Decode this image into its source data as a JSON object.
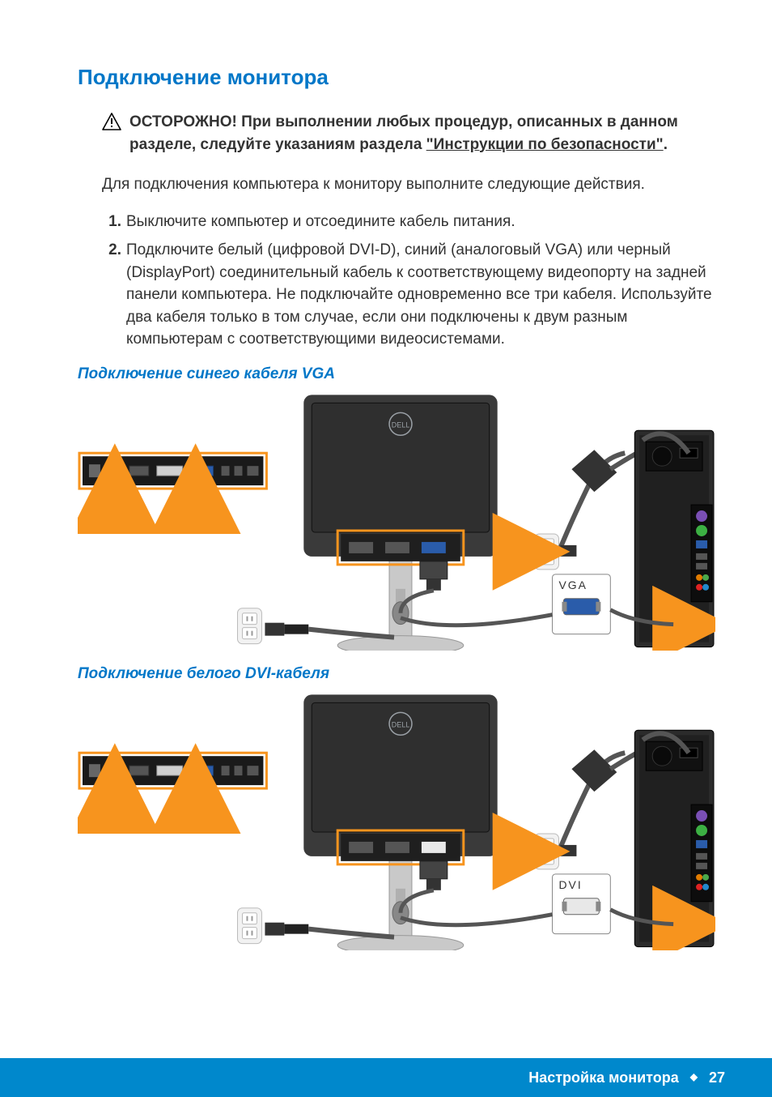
{
  "title": "Подключение монитора",
  "caution": {
    "lead": "ОСТОРОЖНО! При выполнении любых процедур, описанных в данном разделе, следуйте указаниям раздела ",
    "link": "\"Инструкции по безопасности\"",
    "tail": "."
  },
  "intro": "Для подключения компьютера к монитору выполните следующие действия.",
  "steps": [
    {
      "n": "1.",
      "t": "Выключите компьютер и отсоедините кабель питания."
    },
    {
      "n": "2.",
      "t": "Подключите белый (цифровой DVI-D), синий (аналоговый VGA) или черный (DisplayPort) соединительный кабель к соответствующему видеопорту на задней панели компьютера. Не подключайте одновременно все три кабеля. Используйте два кабеля только в том случае, если они подключены к двум разным компьютерам с соответствующими видеосистемами."
    }
  ],
  "sub_vga": "Подключение синего кабеля VGA",
  "sub_dvi": "Подключение белого DVI-кабеля",
  "footer_section": "Настройка монитора",
  "footer_page": "27",
  "colors": {
    "accent": "#0077c8",
    "footer_bg": "#0088cc",
    "highlight": "#f7941e",
    "monitor": "#3a3a3a",
    "tower": "#2b2b2b",
    "panel": "#1a1a1a",
    "outlet": "#d9d9d9",
    "cable": "#555555",
    "vga_blue": "#2a5caa",
    "dvi_white": "#e8e8e8",
    "port_green": "#3cb043",
    "port_purple": "#7a4fb5"
  },
  "diagrams": {
    "vga": {
      "label": "VGA",
      "connector_color": "#2a5caa"
    },
    "dvi": {
      "label": "DVI",
      "connector_color": "#e8e8e8"
    }
  }
}
